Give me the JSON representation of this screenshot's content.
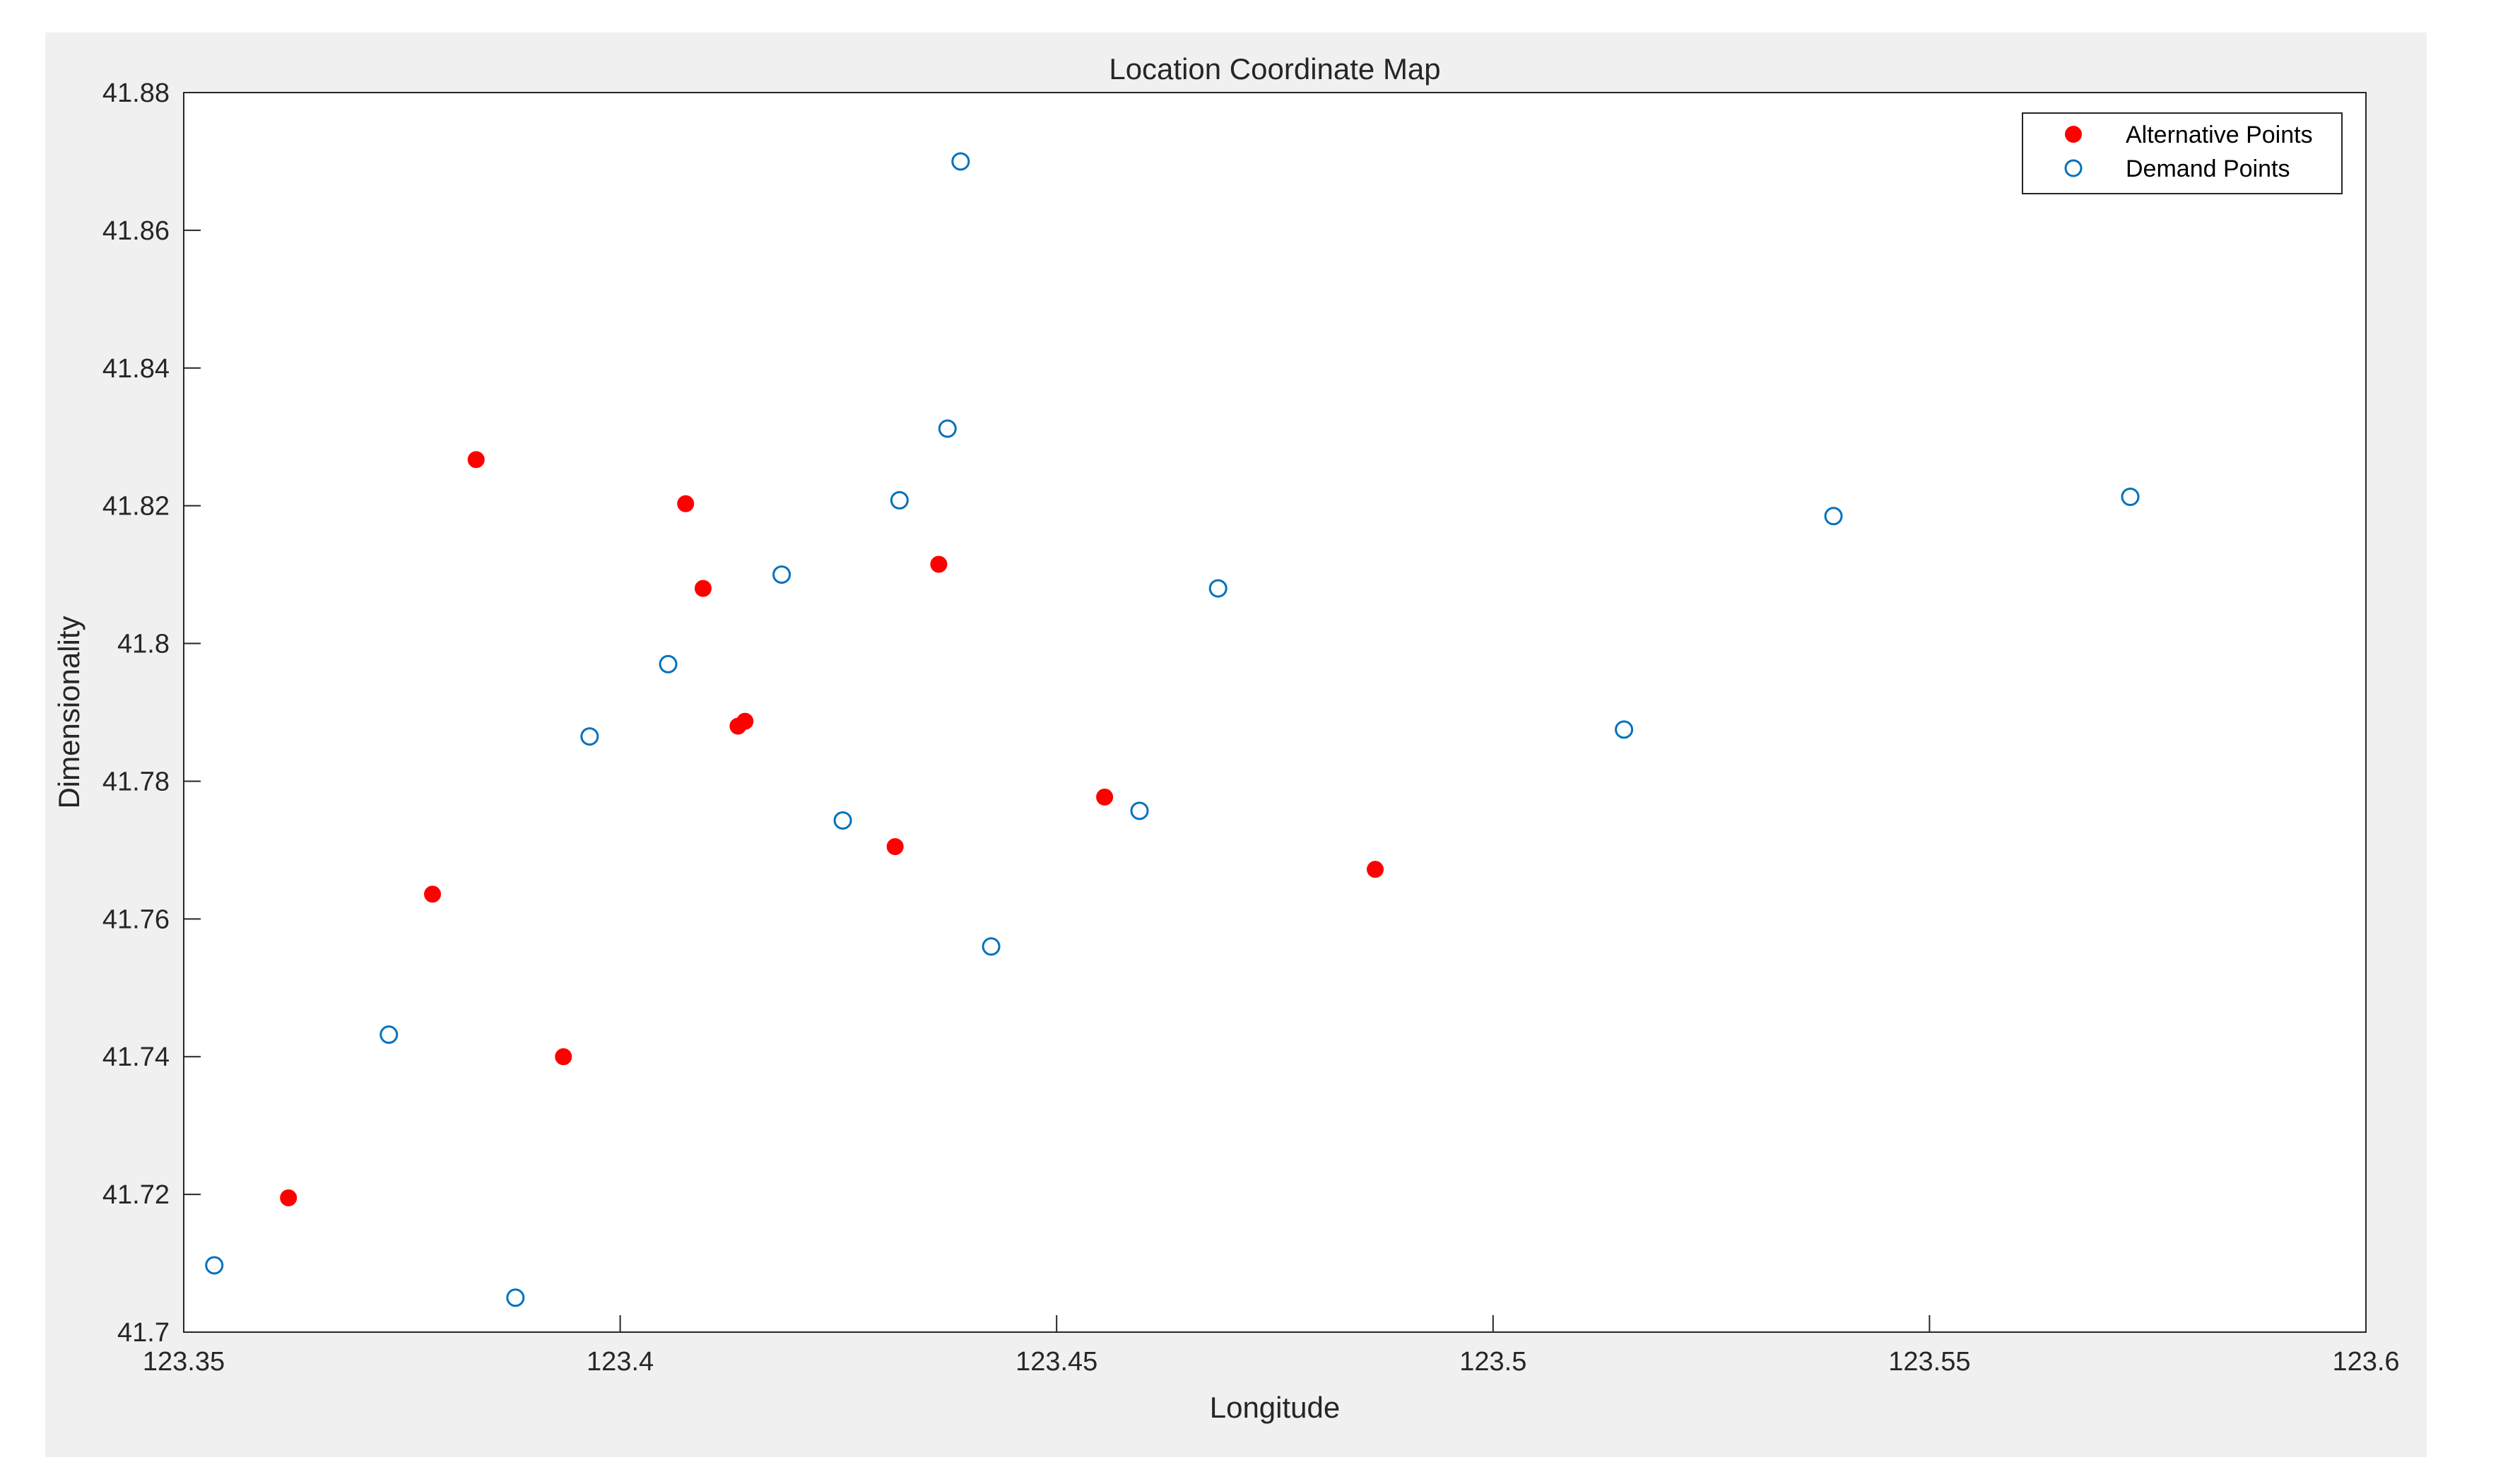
{
  "chart_data": {
    "type": "scatter",
    "title": "Location Coordinate Map",
    "xlabel": "Longitude",
    "ylabel": "Dimensionality",
    "xlim": [
      123.35,
      123.6
    ],
    "ylim": [
      41.7,
      41.88
    ],
    "xticks": [
      "123.35",
      "123.4",
      "123.45",
      "123.5",
      "123.55",
      "123.6"
    ],
    "yticks": [
      "41.7",
      "41.72",
      "41.74",
      "41.76",
      "41.78",
      "41.8",
      "41.82",
      "41.84",
      "41.86",
      "41.88"
    ],
    "grid": false,
    "legend_position": "top-right",
    "series": [
      {
        "name": "Alternative Points",
        "marker": "filled-circle",
        "color": "#ff0000",
        "points": [
          [
            123.362,
            41.7195
          ],
          [
            123.3835,
            41.8267
          ],
          [
            123.3785,
            41.7636
          ],
          [
            123.3935,
            41.74
          ],
          [
            123.4075,
            41.8203
          ],
          [
            123.4095,
            41.808
          ],
          [
            123.4135,
            41.788
          ],
          [
            123.4143,
            41.7887
          ],
          [
            123.4315,
            41.7705
          ],
          [
            123.4365,
            41.8115
          ],
          [
            123.4555,
            41.7777
          ],
          [
            123.4865,
            41.7672
          ]
        ]
      },
      {
        "name": "Demand Points",
        "marker": "open-circle",
        "color": "#0072bd",
        "points": [
          [
            123.3535,
            41.7097
          ],
          [
            123.3735,
            41.7432
          ],
          [
            123.388,
            41.705
          ],
          [
            123.3965,
            41.7865
          ],
          [
            123.4055,
            41.797
          ],
          [
            123.4185,
            41.81
          ],
          [
            123.4255,
            41.7743
          ],
          [
            123.432,
            41.8208
          ],
          [
            123.4375,
            41.8312
          ],
          [
            123.439,
            41.87
          ],
          [
            123.4425,
            41.756
          ],
          [
            123.4595,
            41.7757
          ],
          [
            123.4685,
            41.808
          ],
          [
            123.515,
            41.7875
          ],
          [
            123.539,
            41.8185
          ],
          [
            123.573,
            41.8213
          ]
        ]
      }
    ]
  }
}
